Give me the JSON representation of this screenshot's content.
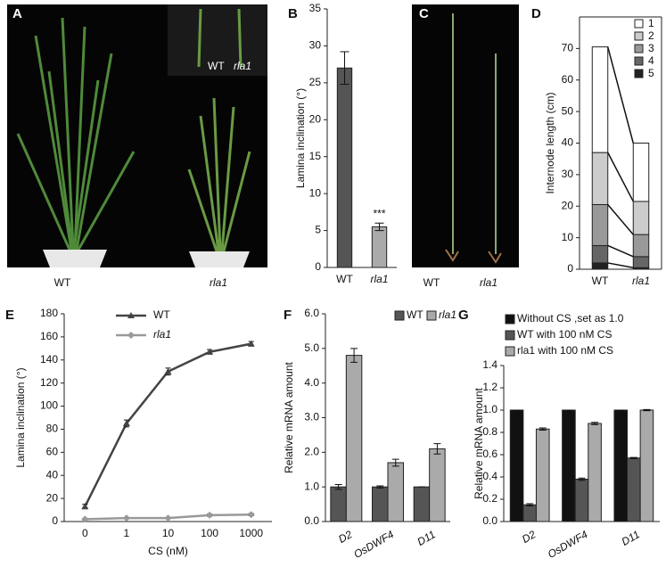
{
  "photos": [
    {
      "panel": "A",
      "labels": [
        "WT",
        "rla1"
      ],
      "inset_labels": [
        "WT",
        "rla1"
      ]
    },
    {
      "panel": "C",
      "labels": [
        "WT",
        "rla1"
      ]
    }
  ],
  "chart_data": [
    {
      "type": "bar",
      "panel": "B",
      "ylabel": "Lamina inclination (°)",
      "categories": [
        "WT",
        "rla1"
      ],
      "series": [
        {
          "values": [
            27,
            5.5
          ],
          "errors": [
            2.2,
            0.5
          ],
          "colors": [
            "#555555",
            "#aaaaaa"
          ]
        }
      ],
      "annotations": [
        "***"
      ],
      "ylim": [
        0,
        35
      ],
      "yticks": [
        0,
        5,
        10,
        15,
        20,
        25,
        30,
        35
      ]
    },
    {
      "type": "stacked_bar",
      "panel": "D",
      "ylabel": "Internode length (cm)",
      "categories": [
        "WT",
        "rla1"
      ],
      "series": [
        {
          "name": "1",
          "color": "#ffffff",
          "values": [
            33.5,
            18.5
          ]
        },
        {
          "name": "2",
          "color": "#cccccc",
          "values": [
            16.5,
            10.5
          ]
        },
        {
          "name": "3",
          "color": "#999999",
          "values": [
            13,
            7
          ]
        },
        {
          "name": "4",
          "color": "#666666",
          "values": [
            5.5,
            3.5
          ]
        },
        {
          "name": "5",
          "color": "#222222",
          "values": [
            2,
            0.5
          ]
        }
      ],
      "legend": "top-right",
      "ylim": [
        0,
        80
      ],
      "yticks": [
        0,
        10,
        20,
        30,
        40,
        50,
        60,
        70
      ]
    },
    {
      "type": "line",
      "panel": "E",
      "ylabel": "Lamina inclination (°)",
      "xlabel": "CS (nM)",
      "categories": [
        "0",
        "1",
        "10",
        "100",
        "1000"
      ],
      "series": [
        {
          "name": "WT",
          "color": "#444444",
          "marker": "triangle",
          "values": [
            13,
            85,
            130,
            147,
            154
          ],
          "errors": [
            2,
            3,
            3,
            2,
            2
          ]
        },
        {
          "name": "rla1",
          "color": "#999999",
          "marker": "diamond",
          "values": [
            2,
            3,
            3,
            5.5,
            6
          ],
          "errors": [
            0.5,
            0.5,
            0.5,
            1,
            1
          ]
        }
      ],
      "legend": "top-left",
      "ylim": [
        0,
        180
      ],
      "yticks": [
        0,
        20,
        40,
        60,
        80,
        100,
        120,
        140,
        160,
        180
      ]
    },
    {
      "type": "grouped_bar",
      "panel": "F",
      "ylabel": "Relative mRNA amount",
      "categories": [
        "D2",
        "OsDWF4",
        "D11"
      ],
      "series": [
        {
          "name": "WT",
          "color": "#555555",
          "values": [
            1.0,
            1.0,
            1.0
          ],
          "errors": [
            0.07,
            0.03,
            0
          ]
        },
        {
          "name": "rla1",
          "color": "#aaaaaa",
          "values": [
            4.8,
            1.7,
            2.1
          ],
          "errors": [
            0.2,
            0.1,
            0.15
          ]
        }
      ],
      "legend": "top-right",
      "ylim": [
        0,
        6
      ],
      "yticks": [
        {
          "value": 0,
          "label": "0.0"
        },
        {
          "value": 1,
          "label": "1.0"
        },
        {
          "value": 2,
          "label": "2.0"
        },
        {
          "value": 3,
          "label": "3.0"
        },
        {
          "value": 4,
          "label": "4.0"
        },
        {
          "value": 5,
          "label": "5.0"
        },
        {
          "value": 6,
          "label": "6.0"
        }
      ]
    },
    {
      "type": "grouped_bar",
      "panel": "G",
      "ylabel": "Relative mRNA amount",
      "categories": [
        "D2",
        "OsDWF4",
        "D11"
      ],
      "series": [
        {
          "name": "Without CS ,set as 1.0",
          "color": "#111111",
          "values": [
            1.0,
            1.0,
            1.0
          ],
          "errors": [
            0,
            0,
            0
          ]
        },
        {
          "name": "WT with 100 nM CS",
          "color": "#555555",
          "values": [
            0.15,
            0.38,
            0.57
          ],
          "errors": [
            0.01,
            0.01,
            0.005
          ]
        },
        {
          "name": "rla1 with 100 nM  CS",
          "color": "#aaaaaa",
          "values": [
            0.83,
            0.88,
            1.0
          ],
          "errors": [
            0.01,
            0.01,
            0.005
          ]
        }
      ],
      "legend": "top",
      "ylim": [
        0,
        1.4
      ],
      "yticks": [
        {
          "value": 0,
          "label": "0.0"
        },
        {
          "value": 0.2,
          "label": "0.2"
        },
        {
          "value": 0.4,
          "label": "0.4"
        },
        {
          "value": 0.6,
          "label": "0.6"
        },
        {
          "value": 0.8,
          "label": "0.8"
        },
        {
          "value": 1,
          "label": "1.0"
        },
        {
          "value": 1.2,
          "label": "1.2"
        },
        {
          "value": 1.4,
          "label": "1.4"
        }
      ]
    }
  ]
}
